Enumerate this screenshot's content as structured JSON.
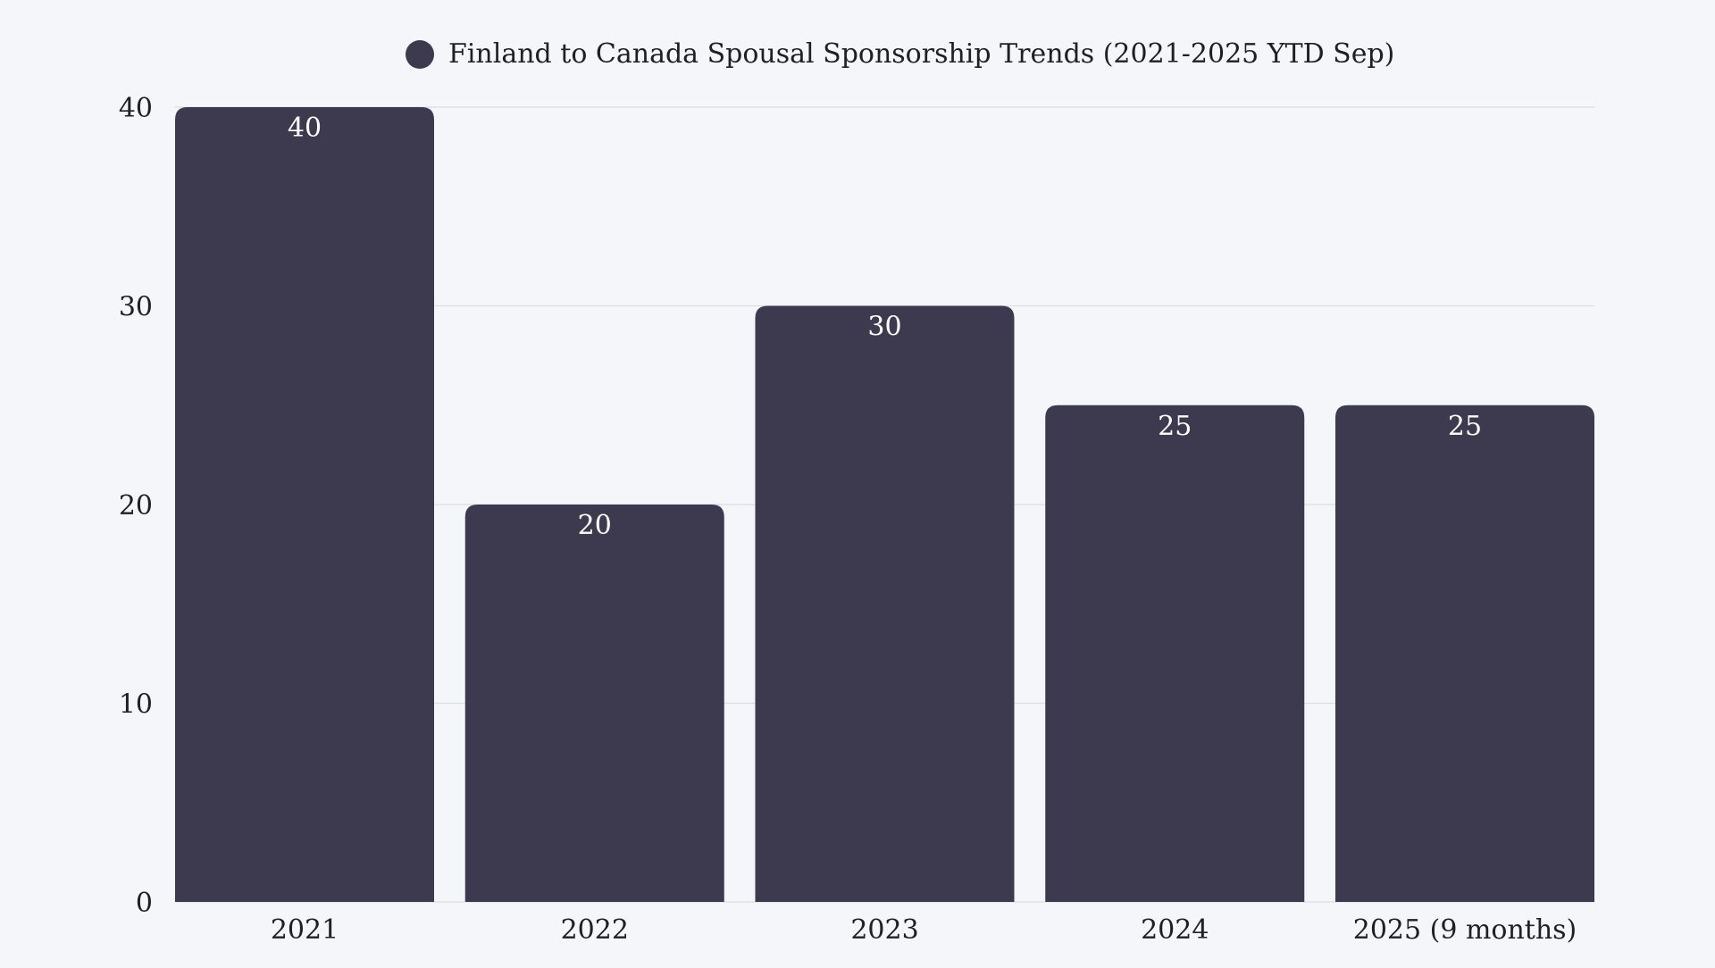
{
  "chart_data": {
    "type": "bar",
    "title": "",
    "categories": [
      "2021",
      "2022",
      "2023",
      "2024",
      "2025 (9 months)"
    ],
    "series": [
      {
        "name": "Finland to Canada Spousal Sponsorship Trends (2021-2025 YTD Sep)",
        "values": [
          40,
          20,
          30,
          25,
          25
        ]
      }
    ],
    "xlabel": "",
    "ylabel": "",
    "ylim": [
      0,
      40
    ],
    "yticks": [
      0,
      10,
      20,
      30,
      40
    ],
    "grid": true,
    "legend_position": "top-center",
    "data_labels": true,
    "colors": {
      "bar": "#3d3a50",
      "background": "#f5f6f9",
      "grid": "#dcdde2",
      "text": "#1f1f24",
      "label": "#ffffff"
    }
  }
}
